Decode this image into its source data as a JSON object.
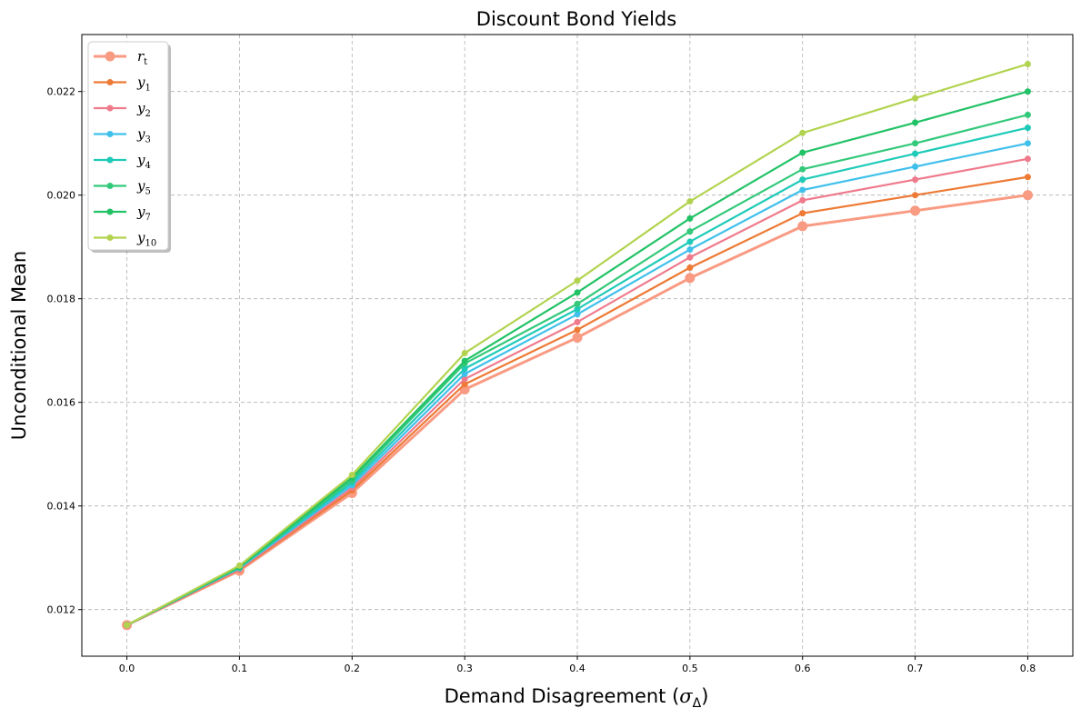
{
  "chart_data": {
    "type": "line",
    "title": "Discount Bond Yields",
    "xlabel": "Demand Disagreement (",
    "xlabel_symbol": "σ",
    "xlabel_sub": "Δ",
    "xlabel_end": ")",
    "ylabel": "Unconditional Mean",
    "x": [
      0.0,
      0.1,
      0.2,
      0.3,
      0.4,
      0.5,
      0.6,
      0.7,
      0.8
    ],
    "xticks": [
      "0.0",
      "0.1",
      "0.2",
      "0.3",
      "0.4",
      "0.5",
      "0.6",
      "0.7",
      "0.8"
    ],
    "yticks": [
      "0.012",
      "0.014",
      "0.016",
      "0.018",
      "0.020",
      "0.022"
    ],
    "ytick_values": [
      0.012,
      0.014,
      0.016,
      0.018,
      0.02,
      0.022
    ],
    "xlim": [
      -0.04,
      0.84
    ],
    "ylim": [
      0.0111,
      0.0231
    ],
    "grid": true,
    "legend_position": "top-left",
    "series": [
      {
        "name": "r",
        "sub": "t",
        "color": "#F99A82",
        "values": [
          0.0117,
          0.01275,
          0.01425,
          0.01625,
          0.01725,
          0.0184,
          0.0194,
          0.0197,
          0.02
        ]
      },
      {
        "name": "y",
        "sub": "1",
        "color": "#ED7A35",
        "values": [
          0.0117,
          0.01277,
          0.0143,
          0.01635,
          0.0174,
          0.0186,
          0.01965,
          0.02,
          0.02035
        ]
      },
      {
        "name": "y",
        "sub": "2",
        "color": "#EF7A8C",
        "values": [
          0.0117,
          0.01278,
          0.01435,
          0.01645,
          0.01755,
          0.0188,
          0.0199,
          0.0203,
          0.0207
        ]
      },
      {
        "name": "y",
        "sub": "3",
        "color": "#3FC0EB",
        "values": [
          0.0117,
          0.0128,
          0.0144,
          0.01655,
          0.0177,
          0.01895,
          0.0201,
          0.02055,
          0.021
        ]
      },
      {
        "name": "y",
        "sub": "4",
        "color": "#1FCBB8",
        "values": [
          0.0117,
          0.01281,
          0.01445,
          0.01665,
          0.0178,
          0.0191,
          0.0203,
          0.0208,
          0.0213
        ]
      },
      {
        "name": "y",
        "sub": "5",
        "color": "#33C97A",
        "values": [
          0.0117,
          0.01282,
          0.0145,
          0.01675,
          0.0179,
          0.0193,
          0.0205,
          0.021,
          0.02155
        ]
      },
      {
        "name": "y",
        "sub": "7",
        "color": "#22C266",
        "values": [
          0.0117,
          0.01283,
          0.01455,
          0.0168,
          0.01812,
          0.01955,
          0.02082,
          0.0214,
          0.022
        ]
      },
      {
        "name": "y",
        "sub": "10",
        "color": "#B2D34F",
        "values": [
          0.0117,
          0.01285,
          0.0146,
          0.01695,
          0.01835,
          0.01988,
          0.0212,
          0.02187,
          0.02253
        ]
      }
    ]
  }
}
